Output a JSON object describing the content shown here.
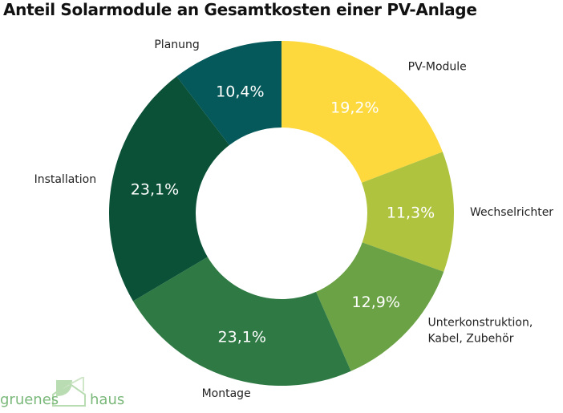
{
  "chart_data": {
    "type": "pie",
    "title": "Anteil Solarmodule an Gesamtkosten einer PV-Anlage",
    "donut": true,
    "slices": [
      {
        "label": [
          "PV-Module"
        ],
        "value": 19.2,
        "text": "19,2%",
        "color": "#fdd93d"
      },
      {
        "label": [
          "Wechselrichter"
        ],
        "value": 11.3,
        "text": "11,3%",
        "color": "#afc33e"
      },
      {
        "label": [
          "Unterkonstruktion,",
          "Kabel, Zubehör"
        ],
        "value": 12.9,
        "text": "12,9%",
        "color": "#6ba246"
      },
      {
        "label": [
          "Montage"
        ],
        "value": 23.1,
        "text": "23,1%",
        "color": "#2f7a44"
      },
      {
        "label": [
          "Installation"
        ],
        "value": 23.1,
        "text": "23,1%",
        "color": "#0b5137"
      },
      {
        "label": [
          "Planung"
        ],
        "value": 10.4,
        "text": "10,4%",
        "color": "#05595a"
      }
    ]
  },
  "logo": {
    "left_text": "gruenes",
    "right_text": "haus",
    "color": "#7ab87a"
  }
}
